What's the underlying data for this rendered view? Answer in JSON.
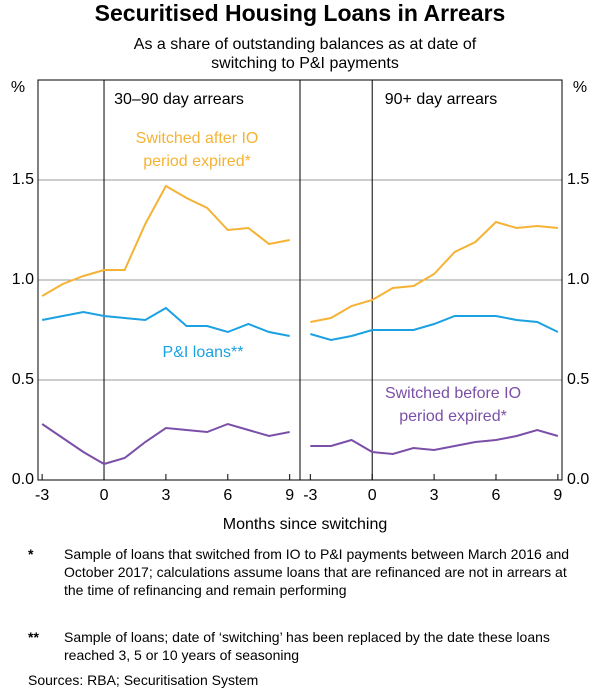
{
  "header": {
    "title": "Securitised Housing Loans in Arrears",
    "subtitle": "As a share of outstanding balances as at date of switching to P&I payments"
  },
  "x_label": "Months since switching",
  "chart_data": [
    {
      "type": "line",
      "title": "30–90 day arrears",
      "y_label": "%",
      "x": [
        -3,
        -2,
        -1,
        0,
        1,
        2,
        3,
        4,
        5,
        6,
        7,
        8,
        9
      ],
      "xlim": [
        -3.2,
        9.5
      ],
      "xticks": [
        -3,
        0,
        3,
        6,
        9
      ],
      "ylim": [
        0,
        2
      ],
      "yticks": [
        {
          "value": 0,
          "label": "0.0"
        },
        0.5,
        {
          "value": 1,
          "label": "1.0"
        },
        1.5
      ],
      "grid": true,
      "series": [
        {
          "name": "Switched after IO period expired*",
          "color": "#f5b335",
          "values": [
            0.92,
            0.98,
            1.02,
            1.05,
            1.05,
            1.28,
            1.47,
            1.41,
            1.36,
            1.25,
            1.26,
            1.18,
            1.2
          ]
        },
        {
          "name": "P&I loans**",
          "color": "#1ba1e2",
          "values": [
            0.8,
            0.82,
            0.84,
            0.82,
            0.81,
            0.8,
            0.86,
            0.77,
            0.77,
            0.74,
            0.78,
            0.74,
            0.72
          ]
        },
        {
          "color": "#7b4fa8",
          "values": [
            0.28,
            0.21,
            0.14,
            0.08,
            0.11,
            0.19,
            0.26,
            0.25,
            0.24,
            0.28,
            0.25,
            0.22,
            0.24
          ]
        }
      ]
    },
    {
      "type": "line",
      "title": "90+ day arrears",
      "y_label": "%",
      "x": [
        -3,
        -2,
        -1,
        0,
        1,
        2,
        3,
        4,
        5,
        6,
        7,
        8,
        9
      ],
      "xlim": [
        -3.5,
        9.2
      ],
      "xticks": [
        -3,
        0,
        3,
        6,
        9
      ],
      "ylim": [
        0,
        2
      ],
      "yticks": [
        {
          "value": 0,
          "label": "0.0"
        },
        0.5,
        {
          "value": 1,
          "label": "1.0"
        },
        1.5
      ],
      "grid": true,
      "series": [
        {
          "color": "#f5b335",
          "values": [
            0.79,
            0.81,
            0.87,
            0.9,
            0.96,
            0.97,
            1.03,
            1.14,
            1.19,
            1.29,
            1.26,
            1.27,
            1.26
          ]
        },
        {
          "color": "#1ba1e2",
          "values": [
            0.73,
            0.7,
            0.72,
            0.75,
            0.75,
            0.75,
            0.78,
            0.82,
            0.82,
            0.82,
            0.8,
            0.79,
            0.74
          ]
        },
        {
          "name": "Switched before IO period expired*",
          "color": "#7b4fa8",
          "values": [
            0.17,
            0.17,
            0.2,
            0.14,
            0.13,
            0.16,
            0.15,
            0.17,
            0.19,
            0.2,
            0.22,
            0.25,
            0.22
          ]
        }
      ]
    }
  ],
  "notes": [
    {
      "marker": "*",
      "text": "Sample of loans that switched from IO to P&I payments between March 2016 and October 2017; calculations assume loans that are refinanced are not in arrears at the time of refinancing and remain performing"
    },
    {
      "marker": "**",
      "text": "Sample of loans; date of ‘switching’ has been replaced by the date these loans reached 3, 5 or 10 years of seasoning"
    }
  ],
  "source": "Sources: RBA; Securitisation System"
}
